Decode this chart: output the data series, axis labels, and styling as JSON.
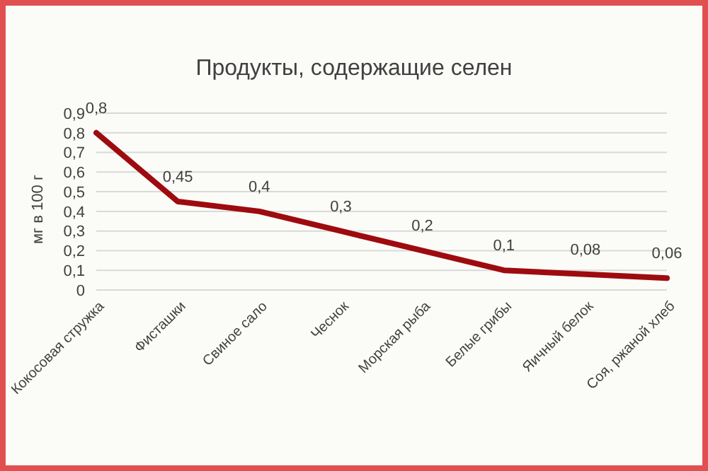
{
  "chart_data": {
    "type": "line",
    "title": "Продукты, содержащие селен",
    "ylabel": "мг в 100 г",
    "categories": [
      "Кокосовая стружка",
      "Фисташки",
      "Свиное сало",
      "Чеснок",
      "Морская рыба",
      "Белые грибы",
      "Яичный белок",
      "Соя, ржаной хлеб"
    ],
    "series": [
      {
        "color": "#9e0b0f",
        "values": [
          0.8,
          0.45,
          0.4,
          0.3,
          0.2,
          0.1,
          0.08,
          0.06
        ],
        "value_labels": [
          "0,8",
          "0,45",
          "0,4",
          "0,3",
          "0,2",
          "0,1",
          "0,08",
          "0,06"
        ]
      }
    ],
    "ylim": [
      0,
      0.9
    ],
    "yticks": [
      {
        "value": 0,
        "label": "0"
      },
      {
        "value": 0.1,
        "label": "0,1"
      },
      {
        "value": 0.2,
        "label": "0,2"
      },
      {
        "value": 0.3,
        "label": "0,3"
      },
      {
        "value": 0.4,
        "label": "0,4"
      },
      {
        "value": 0.5,
        "label": "0,5"
      },
      {
        "value": 0.6,
        "label": "0,6"
      },
      {
        "value": 0.7,
        "label": "0,7"
      },
      {
        "value": 0.8,
        "label": "0,8"
      },
      {
        "value": 0.9,
        "label": "0,9"
      }
    ],
    "grid": "y",
    "marker": "none",
    "line_style": "solid",
    "legend": false
  }
}
